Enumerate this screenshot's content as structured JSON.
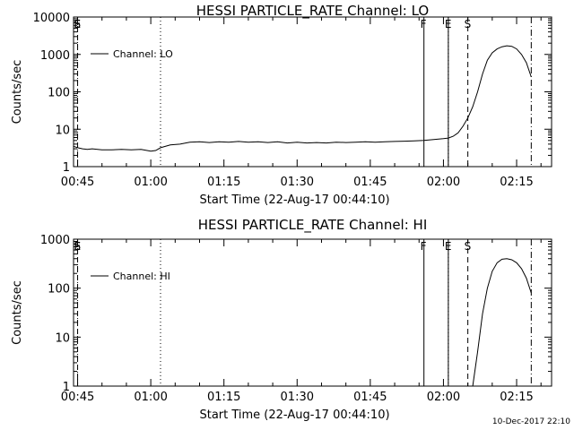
{
  "footer": {
    "timestamp": "10-Dec-2017 22:10"
  },
  "chart_data": [
    {
      "type": "line",
      "title": "HESSI PARTICLE_RATE Channel: LO",
      "xlabel": "Start Time (22-Aug-17 00:44:10)",
      "ylabel": "Counts/sec",
      "yscale": "log",
      "ylim": [
        1,
        10000
      ],
      "xlim": [
        "00:44:10",
        "02:22:10"
      ],
      "xticks": [
        "00:45",
        "01:00",
        "01:15",
        "01:30",
        "01:45",
        "02:00",
        "02:15"
      ],
      "yticks": [
        "1",
        "10",
        "100",
        "1000",
        "10000"
      ],
      "legend": {
        "position": "top-left",
        "entries": [
          "Channel: LO"
        ]
      },
      "markers": [
        {
          "label": "S",
          "time": "00:45:00",
          "style": "dashed"
        },
        {
          "label": "E",
          "time": "00:45:00",
          "style": "dotted"
        },
        {
          "label": "",
          "time": "01:02:00",
          "style": "dotted"
        },
        {
          "label": "F",
          "time": "01:56:00",
          "style": "solid"
        },
        {
          "label": "",
          "time": "02:01:00",
          "style": "solid"
        },
        {
          "label": "E",
          "time": "02:01:00",
          "style": "dotted"
        },
        {
          "label": "S",
          "time": "02:05:00",
          "style": "dashed"
        },
        {
          "label": "",
          "time": "02:18:00",
          "style": "dashdot"
        }
      ],
      "series": [
        {
          "x": [
            "00:44:10",
            "00:45:00",
            "00:46:00",
            "00:47:00",
            "00:48:00",
            "00:50:00",
            "00:52:00",
            "00:54:00",
            "00:56:00",
            "00:58:00",
            "01:00:00",
            "01:01:00",
            "01:02:00",
            "01:04:00",
            "01:06:00",
            "01:08:00",
            "01:10:00",
            "01:12:00",
            "01:14:00",
            "01:16:00",
            "01:18:00",
            "01:20:00",
            "01:22:00",
            "01:24:00",
            "01:26:00",
            "01:28:00",
            "01:30:00",
            "01:32:00",
            "01:34:00",
            "01:36:00",
            "01:38:00",
            "01:40:00",
            "01:42:00",
            "01:44:00",
            "01:46:00",
            "01:48:00",
            "01:50:00",
            "01:52:00",
            "01:54:00",
            "01:56:00",
            "01:58:00",
            "02:00:00",
            "02:01:00",
            "02:02:00",
            "02:03:00",
            "02:04:00",
            "02:05:00",
            "02:06:00",
            "02:07:00",
            "02:08:00",
            "02:09:00",
            "02:10:00",
            "02:11:00",
            "02:12:00",
            "02:13:00",
            "02:14:00",
            "02:15:00",
            "02:16:00",
            "02:17:00",
            "02:18:00"
          ],
          "y": [
            3.5,
            3.2,
            3.0,
            2.9,
            3.0,
            2.8,
            2.8,
            2.9,
            2.8,
            2.9,
            2.6,
            2.7,
            3.2,
            3.8,
            4.0,
            4.5,
            4.6,
            4.4,
            4.6,
            4.5,
            4.7,
            4.5,
            4.6,
            4.4,
            4.6,
            4.3,
            4.5,
            4.3,
            4.4,
            4.3,
            4.5,
            4.4,
            4.5,
            4.6,
            4.5,
            4.6,
            4.7,
            4.8,
            4.9,
            5.0,
            5.3,
            5.6,
            5.8,
            6.5,
            8,
            12,
            20,
            40,
            100,
            300,
            700,
            1100,
            1400,
            1600,
            1700,
            1650,
            1400,
            1000,
            600,
            250
          ]
        }
      ]
    },
    {
      "type": "line",
      "title": "HESSI PARTICLE_RATE Channel: HI",
      "xlabel": "Start Time (22-Aug-17 00:44:10)",
      "ylabel": "Counts/sec",
      "yscale": "log",
      "ylim": [
        1,
        1000
      ],
      "xlim": [
        "00:44:10",
        "02:22:10"
      ],
      "xticks": [
        "00:45",
        "01:00",
        "01:15",
        "01:30",
        "01:45",
        "02:00",
        "02:15"
      ],
      "yticks": [
        "1",
        "10",
        "100",
        "1000"
      ],
      "legend": {
        "position": "top-left",
        "entries": [
          "Channel: HI"
        ]
      },
      "markers": [
        {
          "label": "S",
          "time": "00:45:00",
          "style": "dashed"
        },
        {
          "label": "E",
          "time": "00:45:00",
          "style": "dotted"
        },
        {
          "label": "",
          "time": "01:02:00",
          "style": "dotted"
        },
        {
          "label": "F",
          "time": "01:56:00",
          "style": "solid"
        },
        {
          "label": "",
          "time": "02:01:00",
          "style": "solid"
        },
        {
          "label": "E",
          "time": "02:01:00",
          "style": "dotted"
        },
        {
          "label": "S",
          "time": "02:05:00",
          "style": "dashed"
        },
        {
          "label": "",
          "time": "02:18:00",
          "style": "dashdot"
        }
      ],
      "series": [
        {
          "x": [
            "02:06:00",
            "02:07:00",
            "02:08:00",
            "02:09:00",
            "02:10:00",
            "02:11:00",
            "02:12:00",
            "02:13:00",
            "02:14:00",
            "02:15:00",
            "02:16:00",
            "02:17:00",
            "02:18:00"
          ],
          "y": [
            1,
            5,
            30,
            100,
            220,
            330,
            390,
            400,
            380,
            330,
            250,
            160,
            80
          ]
        }
      ]
    }
  ]
}
